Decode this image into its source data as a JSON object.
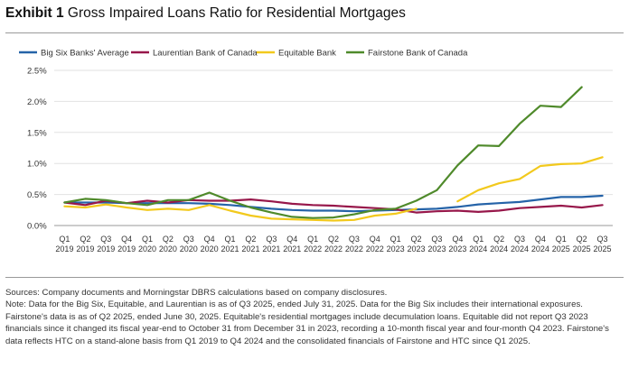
{
  "header": {
    "exhibit": "Exhibit 1",
    "title": "Gross Impaired Loans Ratio for Residential Mortgages"
  },
  "chart_data": {
    "type": "line",
    "title": "Gross Impaired Loans Ratio for Residential Mortgages",
    "categories": [
      [
        "Q1",
        "2019"
      ],
      [
        "Q2",
        "2019"
      ],
      [
        "Q3",
        "2019"
      ],
      [
        "Q4",
        "2019"
      ],
      [
        "Q1",
        "2020"
      ],
      [
        "Q2",
        "2020"
      ],
      [
        "Q3",
        "2020"
      ],
      [
        "Q4",
        "2020"
      ],
      [
        "Q1",
        "2021"
      ],
      [
        "Q2",
        "2021"
      ],
      [
        "Q3",
        "2021"
      ],
      [
        "Q4",
        "2021"
      ],
      [
        "Q1",
        "2022"
      ],
      [
        "Q2",
        "2022"
      ],
      [
        "Q3",
        "2022"
      ],
      [
        "Q4",
        "2022"
      ],
      [
        "Q1",
        "2023"
      ],
      [
        "Q2",
        "2023"
      ],
      [
        "Q3",
        "2023"
      ],
      [
        "Q4",
        "2023"
      ],
      [
        "Q1",
        "2024"
      ],
      [
        "Q2",
        "2024"
      ],
      [
        "Q3",
        "2024"
      ],
      [
        "Q4",
        "2024"
      ],
      [
        "Q1",
        "2025"
      ],
      [
        "Q2",
        "2025"
      ],
      [
        "Q3",
        "2025"
      ]
    ],
    "y_ticks": [
      "0.0%",
      "0.5%",
      "1.0%",
      "1.5%",
      "2.0%",
      "2.5%"
    ],
    "ylim": [
      0,
      2.5
    ],
    "grid": "horizontal",
    "legend_position": "top",
    "series": [
      {
        "name": "Big Six Banks' Average",
        "color": "#2563a8",
        "values": [
          0.37,
          0.37,
          0.37,
          0.36,
          0.36,
          0.36,
          0.36,
          0.35,
          0.33,
          0.3,
          0.27,
          0.25,
          0.24,
          0.24,
          0.23,
          0.24,
          0.25,
          0.26,
          0.27,
          0.3,
          0.34,
          0.36,
          0.38,
          0.42,
          0.46,
          0.46,
          0.48
        ]
      },
      {
        "name": "Laurentian Bank of Canada",
        "color": "#97174a",
        "values": [
          0.37,
          0.33,
          0.4,
          0.36,
          0.4,
          0.37,
          0.41,
          0.4,
          0.4,
          0.42,
          0.39,
          0.35,
          0.33,
          0.32,
          0.3,
          0.28,
          0.26,
          0.21,
          0.23,
          0.24,
          0.22,
          0.24,
          0.28,
          0.3,
          0.32,
          0.29,
          0.33
        ]
      },
      {
        "name": "Equitable Bank",
        "color": "#f2c91d",
        "values": [
          0.31,
          0.29,
          0.34,
          0.29,
          0.25,
          0.27,
          0.25,
          0.33,
          0.24,
          0.16,
          0.11,
          0.1,
          0.09,
          0.08,
          0.09,
          0.16,
          0.19,
          0.27,
          null,
          0.39,
          0.57,
          0.68,
          0.75,
          0.96,
          0.99,
          1.0,
          1.1
        ]
      },
      {
        "name": "Fairstone Bank of Canada",
        "color": "#4f8a2b",
        "values": [
          0.37,
          0.43,
          0.41,
          0.36,
          0.33,
          0.41,
          0.41,
          0.53,
          0.4,
          0.29,
          0.21,
          0.14,
          0.12,
          0.13,
          0.18,
          0.25,
          0.27,
          0.4,
          0.57,
          0.97,
          1.29,
          1.28,
          1.64,
          1.93,
          1.91,
          2.23,
          null
        ]
      }
    ]
  },
  "notes": {
    "sources": "Sources: Company documents and Morningstar DBRS calculations based on company disclosures.",
    "note": "Note: Data for the Big Six, Equitable, and Laurentian is as of Q3 2025, ended July 31, 2025. Data for the Big Six includes their international exposures. Fairstone's data is as of Q2 2025, ended June 30, 2025. Equitable's residential mortgages include decumulation loans. Equitable did not report Q3 2023 financials since it changed its fiscal year-end to October 31 from December 31 in 2023, recording a 10-month fiscal year and four-month Q4 2023. Fairstone's data reflects HTC on a stand-alone basis from Q1 2019 to Q4 2024 and the consolidated financials of Fairstone and HTC since Q1 2025."
  }
}
